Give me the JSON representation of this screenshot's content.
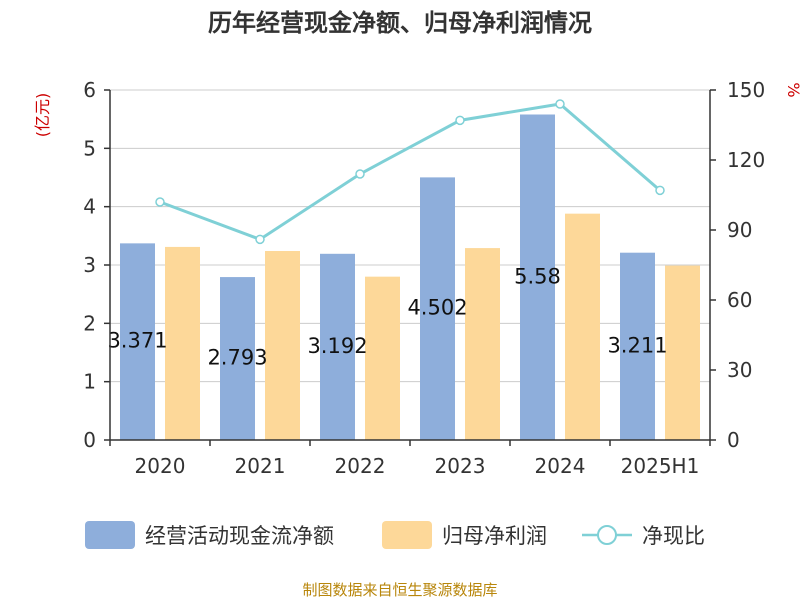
{
  "chart_data": {
    "type": "bar",
    "title": "历年经营现金净额、归母净利润情况",
    "categories": [
      "2020",
      "2021",
      "2022",
      "2023",
      "2024",
      "2025H1"
    ],
    "series": [
      {
        "name": "经营活动现金流净额",
        "type": "bar",
        "axis": "left",
        "color": "#8eaedb",
        "values": [
          3.371,
          2.793,
          3.192,
          4.502,
          5.58,
          3.211
        ]
      },
      {
        "name": "归母净利润",
        "type": "bar",
        "axis": "left",
        "color": "#fdd899",
        "values": [
          3.31,
          3.24,
          2.8,
          3.29,
          3.88,
          2.99
        ]
      },
      {
        "name": "净现比",
        "type": "line",
        "axis": "right",
        "color": "#7fd0d6",
        "values": [
          102,
          86,
          114,
          137,
          144,
          107
        ]
      }
    ],
    "data_labels": [
      "3.371",
      "2.793",
      "3.192",
      "4.502",
      "5.58",
      "3.211"
    ],
    "y_left": {
      "label": "(亿元)",
      "ylim": [
        0,
        6
      ],
      "ticks": [
        "0",
        "1",
        "2",
        "3",
        "4",
        "5",
        "6"
      ]
    },
    "y_right": {
      "label": "%",
      "ylim": [
        0,
        150
      ],
      "ticks": [
        "0",
        "30",
        "60",
        "90",
        "120",
        "150"
      ]
    },
    "grid": true,
    "legend_position": "bottom",
    "source": "制图数据来自恒生聚源数据库",
    "colors": {
      "title": "#333333",
      "axis_label": "#cc0000",
      "source": "#b8860b",
      "grid": "#cccccc",
      "axis": "#333333"
    }
  }
}
